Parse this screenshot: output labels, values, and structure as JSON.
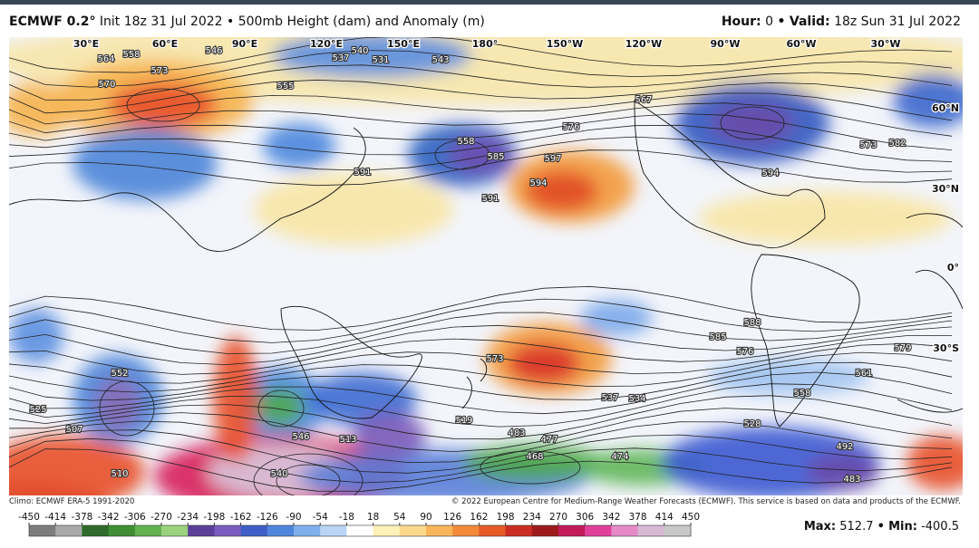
{
  "header": {
    "title": "ECMWF 0.2°",
    "subtitle": "Init 18z 31 Jul 2022 • 500mb Height (dam) and Anomaly (m)",
    "hour_label": "Hour:",
    "hour": "0",
    "separator": "•",
    "valid_label": "Valid:",
    "valid": "18z Sun 31 Jul 2022"
  },
  "map": {
    "longitude_labels": [
      "30°E",
      "60°E",
      "90°E",
      "120°E",
      "150°E",
      "180°",
      "150°W",
      "120°W",
      "90°W",
      "60°W",
      "30°W"
    ],
    "latitude_labels": [
      "60°N",
      "30°N",
      "0°",
      "30°S"
    ],
    "contour_labels": [
      "564",
      "558",
      "573",
      "570",
      "546",
      "540",
      "537",
      "531",
      "543",
      "555",
      "558",
      "576",
      "585",
      "591",
      "597",
      "594",
      "567",
      "591",
      "573",
      "582",
      "594",
      "588",
      "585",
      "576",
      "579",
      "558",
      "552",
      "525",
      "507",
      "510",
      "546",
      "540",
      "519",
      "483",
      "477",
      "468",
      "474",
      "492",
      "483",
      "537",
      "534",
      "528",
      "561",
      "573",
      "513"
    ]
  },
  "footer": {
    "climo": "Climo: ECMWF ERA-5 1991-2020",
    "copyright": "© 2022 European Centre for Medium-Range Weather Forecasts (ECMWF). This service is based on data and products of the ECMWF."
  },
  "colorbar": {
    "ticks": [
      -450,
      -414,
      -378,
      -342,
      -306,
      -270,
      -234,
      -198,
      -162,
      -126,
      -90,
      -54,
      -18,
      18,
      54,
      90,
      126,
      162,
      198,
      234,
      270,
      306,
      342,
      378,
      414,
      450
    ]
  },
  "stats": {
    "max_label": "Max:",
    "max": 512.7,
    "separator": "•",
    "min_label": "Min:",
    "min": -400.5
  }
}
